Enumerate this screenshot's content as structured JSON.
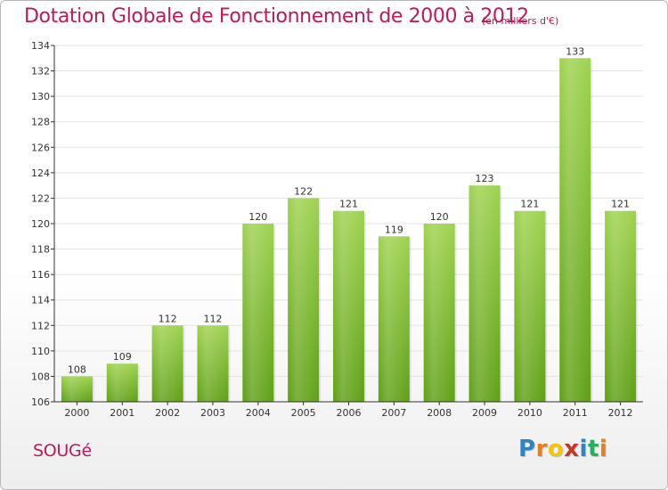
{
  "title": "Dotation Globale de Fonctionnement de 2000 à 2012",
  "subtitle": "(en milliers d'€)",
  "commune": "SOUGé",
  "logo": {
    "text": "Proxiti",
    "letter_colors": [
      "#2e86c1",
      "#e67e22",
      "#f1c40f",
      "#c0392b",
      "#2e86c1",
      "#27ae60",
      "#e67e22"
    ]
  },
  "colors": {
    "accent": "#c0185a",
    "bar_light": "#9ed24f",
    "bar_dark": "#5fa016",
    "axis": "#333333",
    "grid": "#dddddd"
  },
  "chart_data": {
    "type": "bar",
    "title": "Dotation Globale de Fonctionnement de 2000 à 2012",
    "subtitle": "(en milliers d'€)",
    "categories": [
      "2000",
      "2001",
      "2002",
      "2003",
      "2004",
      "2005",
      "2006",
      "2007",
      "2008",
      "2009",
      "2010",
      "2011",
      "2012"
    ],
    "values": [
      108,
      109,
      112,
      112,
      120,
      122,
      121,
      119,
      120,
      123,
      121,
      133,
      121
    ],
    "data_labels": [
      "108",
      "109",
      "112",
      "112",
      "120",
      "122",
      "121",
      "119",
      "120",
      "123",
      "121",
      "133",
      "121"
    ],
    "ylim": [
      106,
      134
    ],
    "yticks": [
      106,
      108,
      110,
      112,
      114,
      116,
      118,
      120,
      122,
      124,
      126,
      128,
      130,
      132,
      134
    ],
    "xlabel": "",
    "ylabel": "",
    "grid": true
  }
}
